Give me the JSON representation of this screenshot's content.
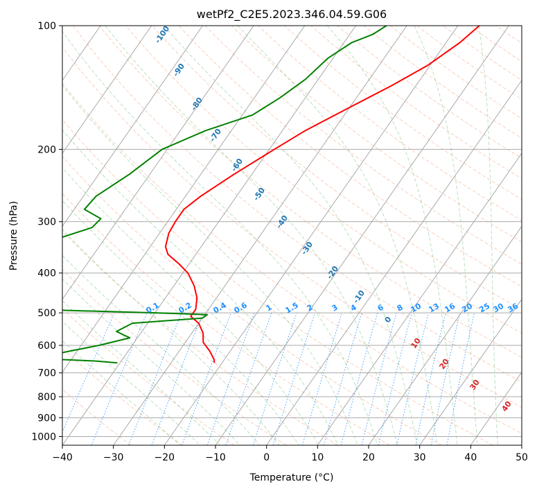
{
  "chart_data": {
    "type": "line",
    "subtype": "skew-t log-p diagram",
    "title": "wetPf2_C2E5.2023.346.04.59.G06",
    "xlabel": "Temperature (°C)",
    "ylabel": "Pressure (hPa)",
    "xlim": [
      -40,
      50
    ],
    "ylim": [
      1050,
      100
    ],
    "y_scale": "log",
    "x_ticks": [
      -40,
      -30,
      -20,
      -10,
      0,
      10,
      20,
      30,
      40,
      50
    ],
    "y_ticks": [
      100,
      200,
      300,
      400,
      500,
      600,
      700,
      800,
      900,
      1000
    ],
    "grid": true,
    "dry_adiabat_labels": [
      "-100",
      "-90",
      "-80",
      "-70",
      "-60",
      "-50",
      "-40",
      "-30",
      "-20",
      "-10",
      "0",
      "10",
      "20",
      "30",
      "40"
    ],
    "mixing_ratio_labels": [
      "0.1",
      "0.2",
      "0.4",
      "0.6",
      "1",
      "1.5",
      "2",
      "3",
      "4",
      "6",
      "8",
      "10",
      "13",
      "16",
      "20",
      "25",
      "30",
      "36"
    ],
    "mixing_ratio_values": [
      0.1,
      0.2,
      0.4,
      0.6,
      1,
      1.5,
      2,
      3,
      4,
      6,
      8,
      10,
      13,
      16,
      20,
      25,
      30,
      36
    ],
    "moist_adiabat_labels": [
      "10",
      "20",
      "30",
      "40"
    ],
    "series": [
      {
        "color": "#ff0000",
        "points": [
          [
            100,
            -15.8
          ],
          [
            110,
            -17.3
          ],
          [
            125,
            -20.5
          ],
          [
            140,
            -24.8
          ],
          [
            160,
            -30.5
          ],
          [
            180,
            -35.5
          ],
          [
            200,
            -39.0
          ],
          [
            230,
            -43.5
          ],
          [
            260,
            -47.0
          ],
          [
            280,
            -48.5
          ],
          [
            300,
            -48.5
          ],
          [
            320,
            -48.2
          ],
          [
            345,
            -47.0
          ],
          [
            360,
            -45.5
          ],
          [
            380,
            -42.0
          ],
          [
            400,
            -39.0
          ],
          [
            430,
            -36.0
          ],
          [
            460,
            -33.8
          ],
          [
            490,
            -32.5
          ],
          [
            510,
            -32.5
          ],
          [
            530,
            -30.0
          ],
          [
            560,
            -27.8
          ],
          [
            590,
            -26.5
          ],
          [
            620,
            -24.0
          ],
          [
            650,
            -22.0
          ],
          [
            662,
            -21.5
          ]
        ]
      },
      {
        "color": "#008000",
        "points": [
          [
            100,
            -34.0
          ],
          [
            105,
            -35.5
          ],
          [
            110,
            -38.5
          ],
          [
            120,
            -41.0
          ],
          [
            135,
            -42.5
          ],
          [
            150,
            -45.0
          ],
          [
            165,
            -48.0
          ],
          [
            180,
            -55.0
          ],
          [
            200,
            -61.0
          ],
          [
            230,
            -64.0
          ],
          [
            260,
            -67.5
          ],
          [
            280,
            -68.0
          ],
          [
            295,
            -63.5
          ],
          [
            310,
            -64.0
          ],
          [
            335,
            -70.5
          ],
          [
            360,
            -73.0
          ],
          [
            385,
            -75.5
          ],
          [
            400,
            -73.8
          ],
          [
            420,
            -74.8
          ],
          [
            445,
            -77.5
          ],
          [
            470,
            -78.0
          ],
          [
            490,
            -66.0
          ],
          [
            500,
            -40.0
          ],
          [
            505,
            -29.5
          ],
          [
            515,
            -30.0
          ],
          [
            530,
            -43.0
          ],
          [
            555,
            -45.0
          ],
          [
            575,
            -41.5
          ],
          [
            600,
            -46.5
          ],
          [
            620,
            -51.5
          ],
          [
            635,
            -55.0
          ],
          [
            638,
            -63.5
          ],
          [
            645,
            -58.0
          ],
          [
            655,
            -45.0
          ],
          [
            662,
            -40.5
          ]
        ]
      }
    ]
  }
}
